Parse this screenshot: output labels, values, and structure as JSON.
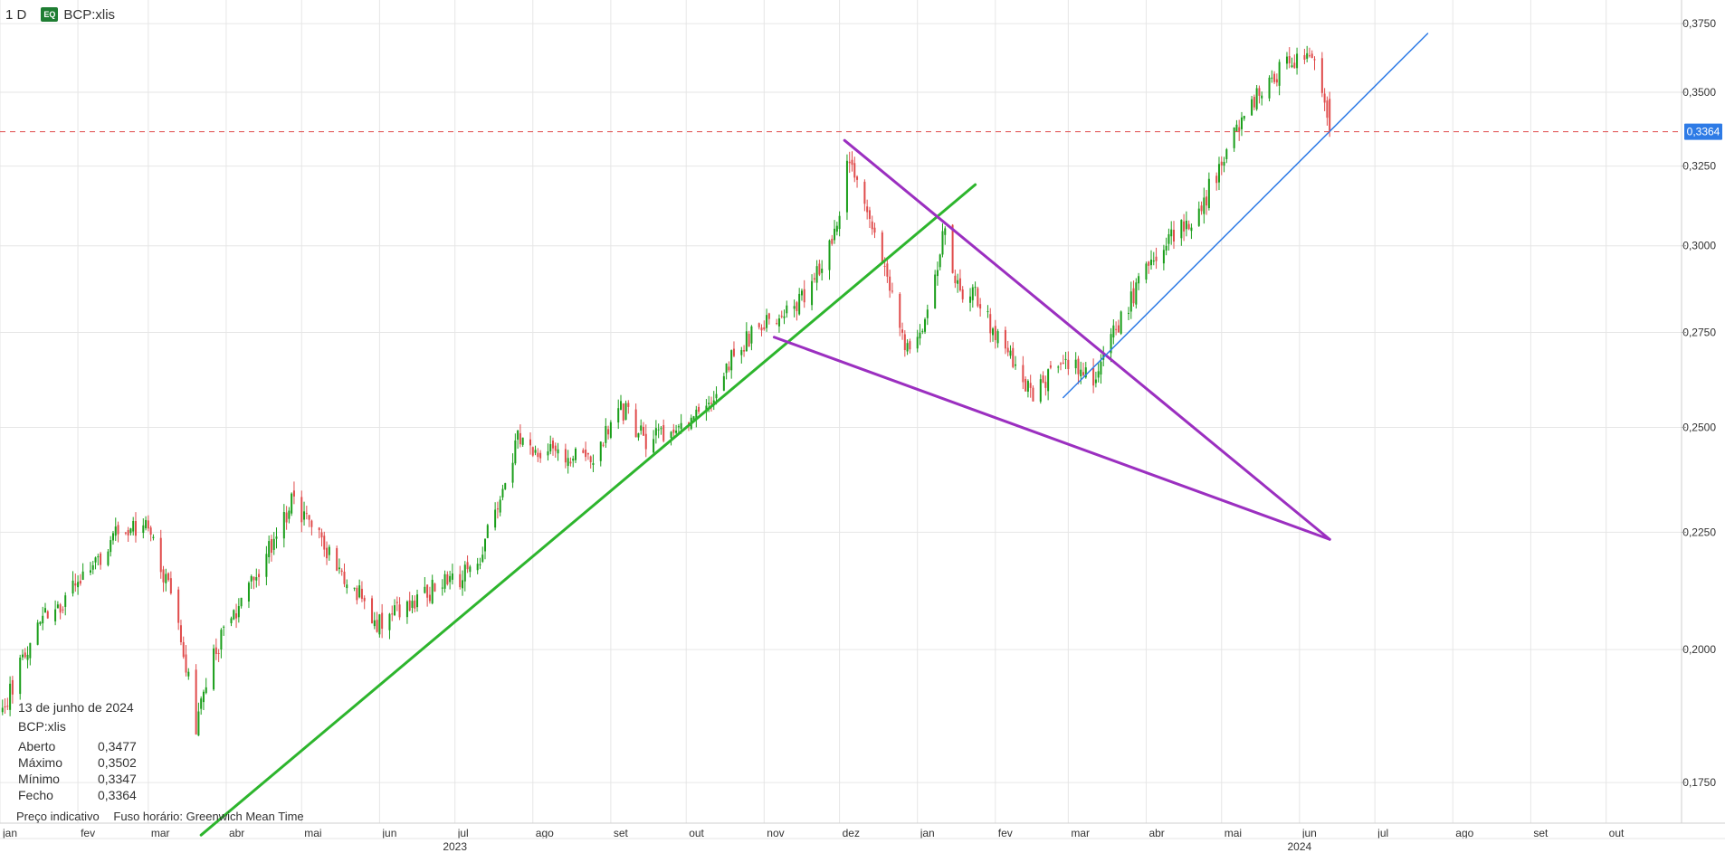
{
  "header": {
    "timeframe": "1 D",
    "badge": "EQ",
    "symbol": "BCP:xlis"
  },
  "info_panel": {
    "date": "13 de junho de 2024",
    "symbol": "BCP:xlis",
    "rows": [
      {
        "label": "Aberto",
        "value": "0,3477"
      },
      {
        "label": "Máximo",
        "value": "0,3502"
      },
      {
        "label": "Mínimo",
        "value": "0,3347"
      },
      {
        "label": "Fecho",
        "value": "0,3364"
      }
    ]
  },
  "footer": {
    "note": "Preço indicativo",
    "timezone": "Fuso horário: Greenwich Mean Time"
  },
  "colors": {
    "up": "#1a9e1a",
    "down": "#e04b4b",
    "trend_green": "#2db52d",
    "purple": "#9b2fc0",
    "blue": "#2e7be6",
    "price_line": "#e04b4b",
    "price_tag": "#2e7be6"
  },
  "chart_data": {
    "type": "candlestick",
    "scale": "log",
    "ylim": [
      0.168,
      0.384
    ],
    "y_ticks": [
      {
        "value": 0.375,
        "label": "0,3750"
      },
      {
        "value": 0.35,
        "label": "0,3500"
      },
      {
        "value": 0.325,
        "label": "0,3250"
      },
      {
        "value": 0.3,
        "label": "0,3000"
      },
      {
        "value": 0.275,
        "label": "0,2750"
      },
      {
        "value": 0.25,
        "label": "0,2500"
      },
      {
        "value": 0.225,
        "label": "0,2250"
      },
      {
        "value": 0.2,
        "label": "0,2000"
      },
      {
        "value": 0.175,
        "label": "0,1750"
      }
    ],
    "x_start": "2023-01-01",
    "x_end": "2024-10-31",
    "x_ticks": [
      {
        "date": "2023-01-01",
        "label": "jan"
      },
      {
        "date": "2023-02-01",
        "label": "fev"
      },
      {
        "date": "2023-03-01",
        "label": "mar"
      },
      {
        "date": "2023-04-01",
        "label": "abr"
      },
      {
        "date": "2023-05-01",
        "label": "mai"
      },
      {
        "date": "2023-06-01",
        "label": "jun"
      },
      {
        "date": "2023-07-01",
        "label": "jul"
      },
      {
        "date": "2023-08-01",
        "label": "ago"
      },
      {
        "date": "2023-09-01",
        "label": "set"
      },
      {
        "date": "2023-10-01",
        "label": "out"
      },
      {
        "date": "2023-11-01",
        "label": "nov"
      },
      {
        "date": "2023-12-01",
        "label": "dez"
      },
      {
        "date": "2024-01-01",
        "label": "jan"
      },
      {
        "date": "2024-02-01",
        "label": "fev"
      },
      {
        "date": "2024-03-01",
        "label": "mar"
      },
      {
        "date": "2024-04-01",
        "label": "abr"
      },
      {
        "date": "2024-05-01",
        "label": "mai"
      },
      {
        "date": "2024-06-01",
        "label": "jun"
      },
      {
        "date": "2024-07-01",
        "label": "jul"
      },
      {
        "date": "2024-08-01",
        "label": "ago"
      },
      {
        "date": "2024-09-01",
        "label": "set"
      },
      {
        "date": "2024-10-01",
        "label": "out"
      }
    ],
    "year_labels": [
      {
        "date": "2023-07-01",
        "label": "2023"
      },
      {
        "date": "2024-06-01",
        "label": "2024"
      }
    ],
    "price_anchors": [
      [
        "2023-01-02",
        0.188
      ],
      [
        "2023-01-15",
        0.205
      ],
      [
        "2023-02-01",
        0.213
      ],
      [
        "2023-02-15",
        0.224
      ],
      [
        "2023-03-01",
        0.226
      ],
      [
        "2023-03-13",
        0.206
      ],
      [
        "2023-03-20",
        0.185
      ],
      [
        "2023-03-28",
        0.2
      ],
      [
        "2023-04-10",
        0.212
      ],
      [
        "2023-04-27",
        0.232
      ],
      [
        "2023-05-10",
        0.222
      ],
      [
        "2023-06-01",
        0.205
      ],
      [
        "2023-06-20",
        0.212
      ],
      [
        "2023-07-10",
        0.217
      ],
      [
        "2023-07-26",
        0.247
      ],
      [
        "2023-08-10",
        0.243
      ],
      [
        "2023-08-25",
        0.243
      ],
      [
        "2023-09-05",
        0.255
      ],
      [
        "2023-09-15",
        0.247
      ],
      [
        "2023-10-10",
        0.255
      ],
      [
        "2023-10-20",
        0.27
      ],
      [
        "2023-11-01",
        0.278
      ],
      [
        "2023-11-15",
        0.283
      ],
      [
        "2023-11-30",
        0.304
      ],
      [
        "2023-12-04",
        0.328
      ],
      [
        "2023-12-14",
        0.305
      ],
      [
        "2023-12-27",
        0.27
      ],
      [
        "2024-01-05",
        0.28
      ],
      [
        "2024-01-12",
        0.305
      ],
      [
        "2024-01-17",
        0.287
      ],
      [
        "2024-01-25",
        0.285
      ],
      [
        "2024-02-01",
        0.274
      ],
      [
        "2024-02-15",
        0.258
      ],
      [
        "2024-02-28",
        0.268
      ],
      [
        "2024-03-10",
        0.262
      ],
      [
        "2024-03-25",
        0.283
      ],
      [
        "2024-04-10",
        0.303
      ],
      [
        "2024-04-20",
        0.307
      ],
      [
        "2024-05-01",
        0.326
      ],
      [
        "2024-05-15",
        0.35
      ],
      [
        "2024-05-29",
        0.362
      ],
      [
        "2024-06-06",
        0.363
      ],
      [
        "2024-06-13",
        0.3364
      ]
    ],
    "last_candle": {
      "date": "2024-06-13",
      "open": 0.3477,
      "high": 0.3502,
      "low": 0.3347,
      "close": 0.3364
    },
    "current_price": {
      "value": 0.3364,
      "label": "0,3364"
    },
    "trendlines": [
      {
        "name": "green-support",
        "color": "green",
        "from": [
          "2023-03-22",
          0.166
        ],
        "to": [
          "2024-01-24",
          0.319
        ]
      },
      {
        "name": "purple-upper",
        "color": "purple",
        "from": [
          "2023-12-03",
          0.3335
        ],
        "to": [
          "2024-06-13",
          0.2234
        ]
      },
      {
        "name": "purple-lower",
        "color": "purple",
        "from": [
          "2023-11-05",
          0.2737
        ],
        "to": [
          "2024-06-13",
          0.2234
        ]
      },
      {
        "name": "blue-support",
        "color": "blue",
        "from": [
          "2024-02-28",
          0.2576
        ],
        "to": [
          "2024-07-22",
          0.3713
        ]
      }
    ]
  }
}
